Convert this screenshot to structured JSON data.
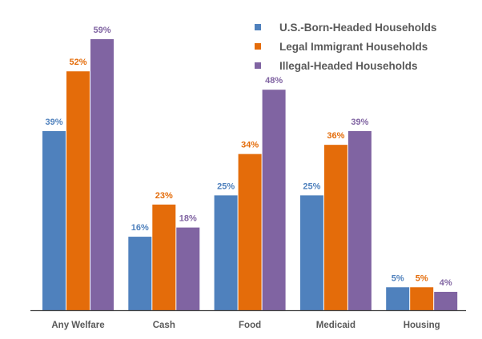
{
  "chart_data": {
    "type": "bar",
    "title": "",
    "xlabel": "",
    "ylabel": "",
    "ylim": [
      0,
      59
    ],
    "grid": false,
    "legend_position": "top-right",
    "categories": [
      "Any Welfare",
      "Cash",
      "Food",
      "Medicaid",
      "Housing"
    ],
    "series": [
      {
        "name": "U.S.-Born-Headed Households",
        "color": "#4f81bd",
        "values": [
          39,
          16,
          25,
          25,
          5
        ],
        "labels": [
          "39%",
          "16%",
          "25%",
          "25%",
          "5%"
        ]
      },
      {
        "name": "Legal Immigrant Households",
        "color": "#e46c0a",
        "values": [
          52,
          23,
          34,
          36,
          5
        ],
        "labels": [
          "52%",
          "23%",
          "34%",
          "36%",
          "5%"
        ]
      },
      {
        "name": "Illegal-Headed Households",
        "color": "#8064a2",
        "values": [
          59,
          18,
          48,
          39,
          4
        ],
        "labels": [
          "59%",
          "18%",
          "48%",
          "39%",
          "4%"
        ]
      }
    ]
  }
}
